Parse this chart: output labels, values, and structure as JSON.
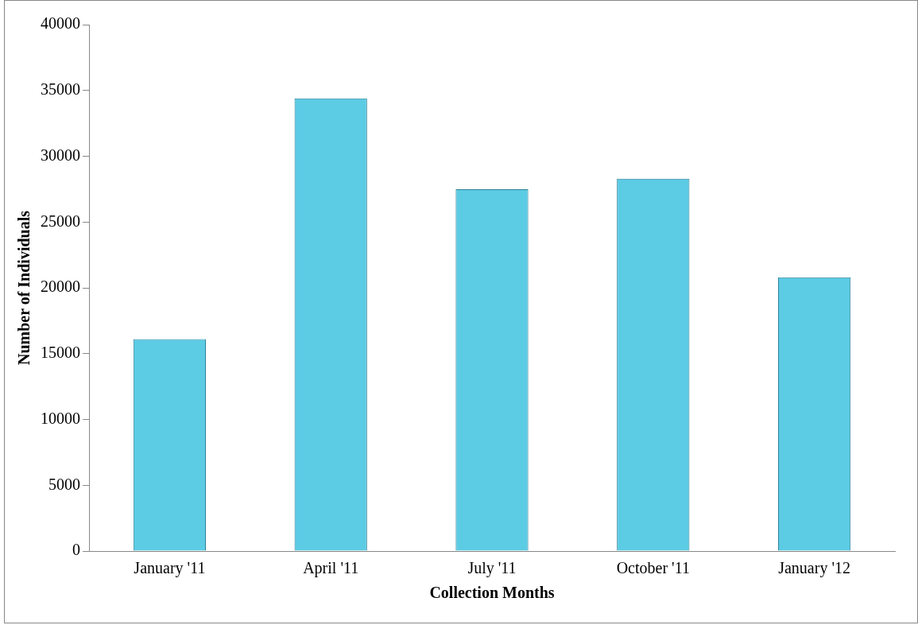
{
  "chart_data": {
    "type": "bar",
    "xlabel": "Collection Months",
    "ylabel": "Number of Individuals",
    "categories": [
      "January '11",
      "April '11",
      "July '11",
      "October '11",
      "January '12"
    ],
    "values": [
      16100,
      34400,
      27500,
      28300,
      20800
    ],
    "color": "#5ccbe4",
    "ylim": [
      0,
      40000
    ],
    "yticks": [
      0,
      5000,
      10000,
      15000,
      20000,
      25000,
      30000,
      35000,
      40000
    ],
    "grid": false,
    "legend": false
  }
}
